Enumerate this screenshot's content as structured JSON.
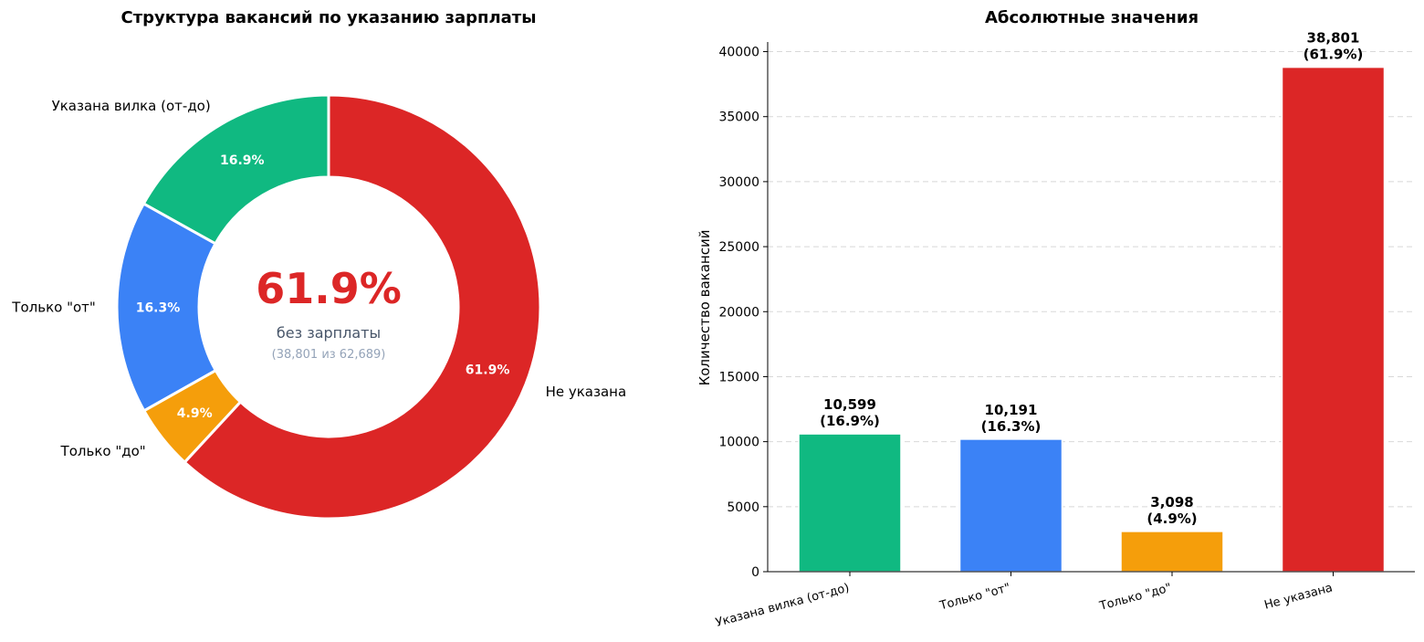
{
  "chart_data": [
    {
      "type": "pie",
      "title": "Структура вакансий по указанию зарплаты",
      "donut": true,
      "categories": [
        "Указана вилка (от-до)",
        "Только \"от\"",
        "Только \"до\"",
        "Не указана"
      ],
      "values": [
        10599,
        10191,
        3098,
        38801
      ],
      "percent_labels": [
        "16.9%",
        "16.3%",
        "4.9%",
        "61.9%"
      ],
      "colors": [
        "#10b981",
        "#3b82f6",
        "#f59e0b",
        "#dc2626"
      ],
      "center": {
        "big": "61.9%",
        "sub": "без зарплаты",
        "detail": "(38,801 из 62,689)",
        "big_color": "#dc2626",
        "sub_color": "#475569",
        "detail_color": "#94a3b8"
      }
    },
    {
      "type": "bar",
      "title": "Абсолютные значения",
      "categories": [
        "Указана вилка (от-до)",
        "Только \"от\"",
        "Только \"до\"",
        "Не указана"
      ],
      "values": [
        10599,
        10191,
        3098,
        38801
      ],
      "value_labels": [
        "10,599",
        "10,191",
        "3,098",
        "38,801"
      ],
      "percent_labels": [
        "(16.9%)",
        "(16.3%)",
        "(4.9%)",
        "(61.9%)"
      ],
      "colors": [
        "#10b981",
        "#3b82f6",
        "#f59e0b",
        "#dc2626"
      ],
      "xlabel": "",
      "ylabel": "Количество вакансий",
      "ylim": [
        0,
        40740
      ],
      "yticks": [
        0,
        5000,
        10000,
        15000,
        20000,
        25000,
        30000,
        35000,
        40000
      ],
      "grid": true
    }
  ]
}
